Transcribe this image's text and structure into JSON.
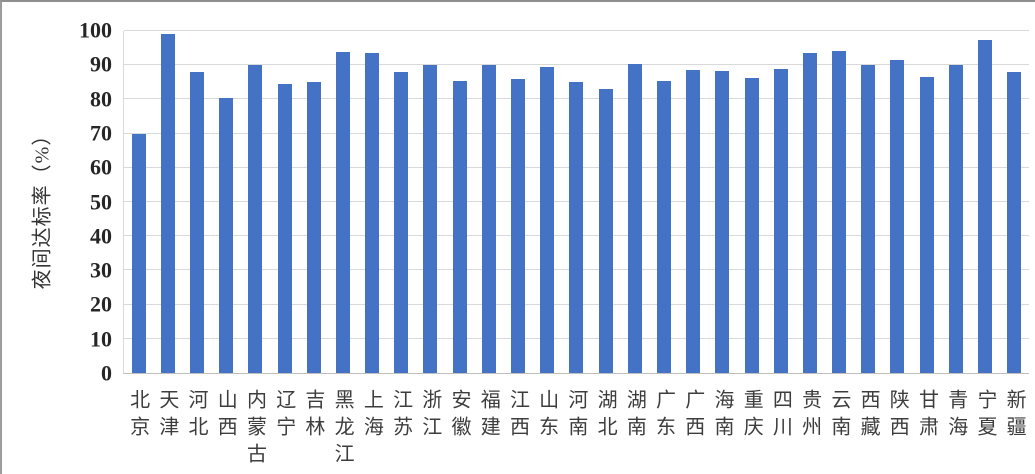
{
  "chart_data": {
    "type": "bar",
    "title": "",
    "xlabel": "",
    "ylabel": "夜间达标率（%）",
    "ylim": [
      0,
      100
    ],
    "y_ticks": [
      0,
      10,
      20,
      30,
      40,
      50,
      60,
      70,
      80,
      90,
      100
    ],
    "grid": "horizontal",
    "legend": "none",
    "bar_color": "#4472C4",
    "gridline_color": "#D9D9D9",
    "axis_line_color": "#BFBFBF",
    "categories": [
      "北京",
      "天津",
      "河北",
      "山西",
      "内蒙古",
      "辽宁",
      "吉林",
      "黑龙江",
      "上海",
      "江苏",
      "浙江",
      "安徽",
      "福建",
      "江西",
      "山东",
      "河南",
      "湖北",
      "湖南",
      "广东",
      "广西",
      "海南",
      "重庆",
      "四川",
      "贵州",
      "云南",
      "西藏",
      "陕西",
      "甘肃",
      "青海",
      "宁夏",
      "新疆"
    ],
    "values": [
      70,
      99,
      88,
      80.5,
      90,
      84.5,
      85,
      93.8,
      93.5,
      88,
      90.2,
      85.5,
      90,
      86,
      89.5,
      85,
      83,
      90.5,
      85.3,
      88.5,
      88.3,
      86.4,
      88.8,
      93.5,
      94.3,
      90,
      91.5,
      86.6,
      90,
      97.4,
      88
    ]
  }
}
